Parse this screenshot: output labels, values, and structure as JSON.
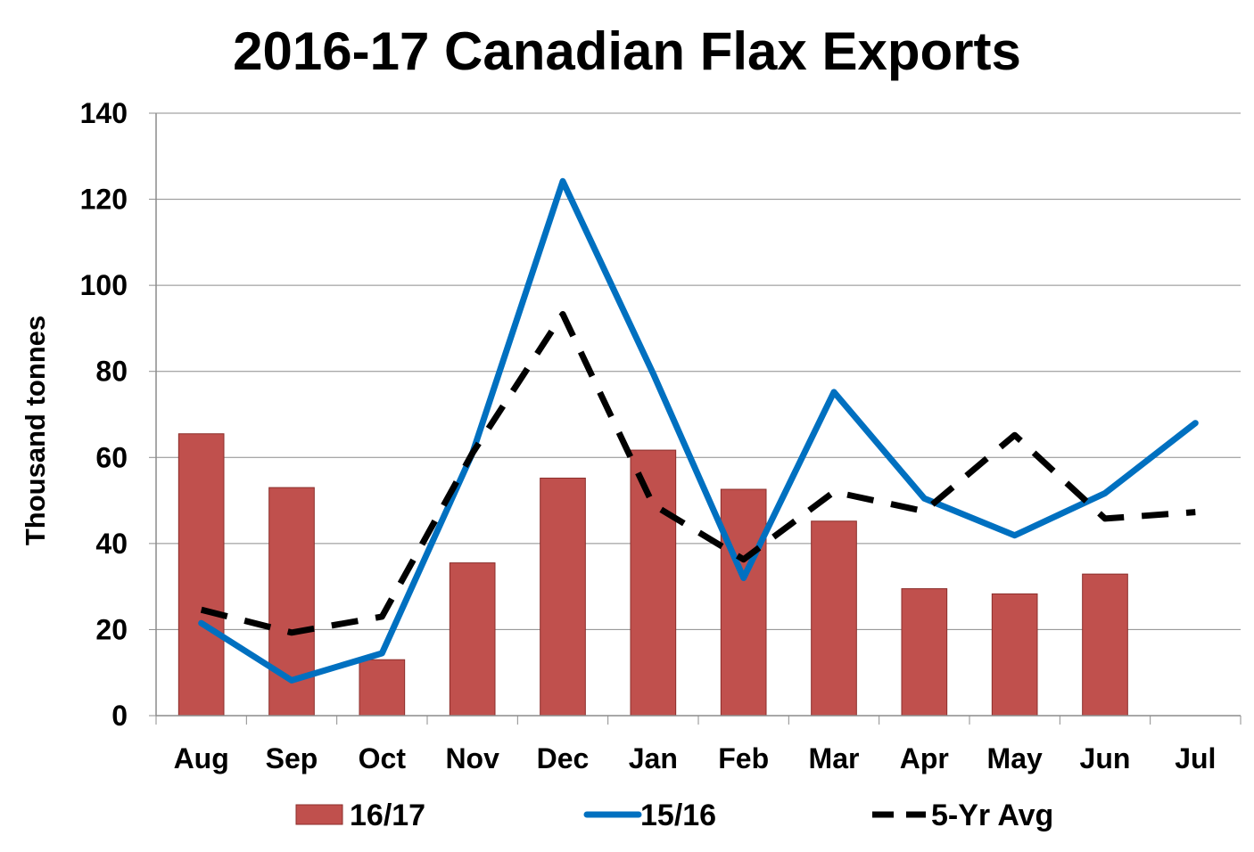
{
  "chart_data": {
    "type": "bar",
    "title": "2016-17 Canadian Flax Exports",
    "ylabel": "Thousand tonnes",
    "xlabel": "",
    "ylim": [
      0,
      140
    ],
    "yticks": [
      "0",
      "20",
      "40",
      "60",
      "80",
      "100",
      "120",
      "140"
    ],
    "categories": [
      "Aug",
      "Sep",
      "Oct",
      "Nov",
      "Dec",
      "Jan",
      "Feb",
      "Mar",
      "Apr",
      "May",
      "Jun",
      "Jul"
    ],
    "grid": true,
    "legend_position": "bottom",
    "series": [
      {
        "name": "16/17",
        "kind": "bar",
        "color": "#C0504D",
        "values": [
          65.5,
          53,
          13,
          35.5,
          55.2,
          61.7,
          52.6,
          45.2,
          29.5,
          28.3,
          32.9,
          null
        ]
      },
      {
        "name": "15/16",
        "kind": "line",
        "color": "#0070C0",
        "values": [
          21.5,
          8.2,
          14.5,
          61,
          124.2,
          79.5,
          32,
          75.2,
          50.5,
          41.9,
          51.7,
          68
        ]
      },
      {
        "name": "5-Yr Avg",
        "kind": "dashed-line",
        "color": "#000000",
        "values": [
          24.6,
          19.3,
          23,
          61,
          93.3,
          49,
          36.3,
          52,
          47.5,
          65.2,
          45.8,
          47.3
        ]
      }
    ]
  }
}
